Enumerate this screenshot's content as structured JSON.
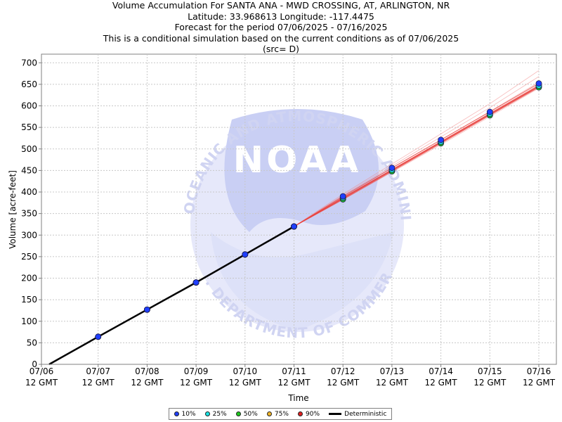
{
  "titles": {
    "line1": "Volume Accumulation For SANTA ANA - MWD CROSSING, AT, ARLINGTON, NR",
    "line2": "Latitude: 33.968613 Longitude: -117.4475",
    "line3": "Forecast for the period 07/06/2025 - 07/16/2025",
    "line4": "This is a conditional simulation based on the current conditions as of 07/06/2025",
    "line5": "(src= D)"
  },
  "watermark": {
    "logo_text": "NOAA",
    "ring_top": "NATIONAL OCEANIC AND ATMOSPHERIC ADMINISTRATION",
    "ring_bottom": "U.S. DEPARTMENT OF COMMERCE"
  },
  "colors": {
    "p10": "#1f3fff",
    "p25": "#19e5e5",
    "p50": "#1ec81e",
    "p75": "#f0b428",
    "p90": "#e02020",
    "deterministic": "#000000",
    "trace": "#f08080",
    "watermark": "#d8dcf6"
  },
  "chart_data": {
    "type": "line",
    "xlabel": "Time",
    "ylabel": "Volume [acre-feet]",
    "ylim": [
      0,
      720
    ],
    "yticks": [
      0,
      50,
      100,
      150,
      200,
      250,
      300,
      350,
      400,
      450,
      500,
      550,
      600,
      650,
      700
    ],
    "x_tick_labels": [
      [
        "07/06",
        "12 GMT"
      ],
      [
        "07/07",
        "12 GMT"
      ],
      [
        "07/08",
        "12 GMT"
      ],
      [
        "07/09",
        "12 GMT"
      ],
      [
        "07/10",
        "12 GMT"
      ],
      [
        "07/11",
        "12 GMT"
      ],
      [
        "07/12",
        "12 GMT"
      ],
      [
        "07/13",
        "12 GMT"
      ],
      [
        "07/14",
        "12 GMT"
      ],
      [
        "07/15",
        "12 GMT"
      ],
      [
        "07/16",
        "12 GMT"
      ]
    ],
    "grid": true,
    "legend_position": "bottom",
    "series": [
      {
        "name": "10%",
        "values": [
          null,
          64,
          127,
          190,
          255,
          320,
          390,
          456,
          521,
          586,
          652
        ]
      },
      {
        "name": "25%",
        "values": [
          null,
          64,
          127,
          190,
          255,
          320,
          387,
          452,
          517,
          582,
          647
        ]
      },
      {
        "name": "50%",
        "values": [
          null,
          64,
          127,
          190,
          255,
          320,
          383,
          448,
          513,
          578,
          643
        ]
      },
      {
        "name": "75%",
        "values": [
          null,
          64,
          127,
          190,
          255,
          320,
          385,
          450,
          515,
          580,
          645
        ]
      },
      {
        "name": "90%",
        "values": [
          null,
          64,
          127,
          190,
          255,
          320,
          386,
          451,
          516,
          581,
          646
        ]
      },
      {
        "name": "Deterministic",
        "values": [
          0,
          64,
          127,
          190,
          255,
          320
        ]
      }
    ],
    "traces": [
      [
        0,
        64,
        127,
        190,
        255,
        320,
        395,
        465,
        535,
        605,
        682
      ],
      [
        0,
        64,
        127,
        190,
        255,
        320,
        392,
        460,
        528,
        596,
        668
      ],
      [
        0,
        64,
        127,
        190,
        255,
        320,
        389,
        455,
        521,
        587,
        655
      ],
      [
        0,
        64,
        127,
        190,
        255,
        320,
        384,
        449,
        514,
        579,
        644
      ],
      [
        0,
        64,
        127,
        190,
        255,
        320,
        382,
        446,
        510,
        575,
        641
      ],
      [
        0,
        64,
        127,
        190,
        255,
        320,
        387,
        452,
        517,
        583,
        649
      ]
    ]
  },
  "legend": [
    {
      "label": "10%",
      "kind": "dot",
      "color_key": "p10"
    },
    {
      "label": "25%",
      "kind": "dot",
      "color_key": "p25"
    },
    {
      "label": "50%",
      "kind": "dot",
      "color_key": "p50"
    },
    {
      "label": "75%",
      "kind": "dot",
      "color_key": "p75"
    },
    {
      "label": "90%",
      "kind": "dot",
      "color_key": "p90"
    },
    {
      "label": "Deterministic",
      "kind": "line",
      "color_key": "deterministic"
    }
  ]
}
